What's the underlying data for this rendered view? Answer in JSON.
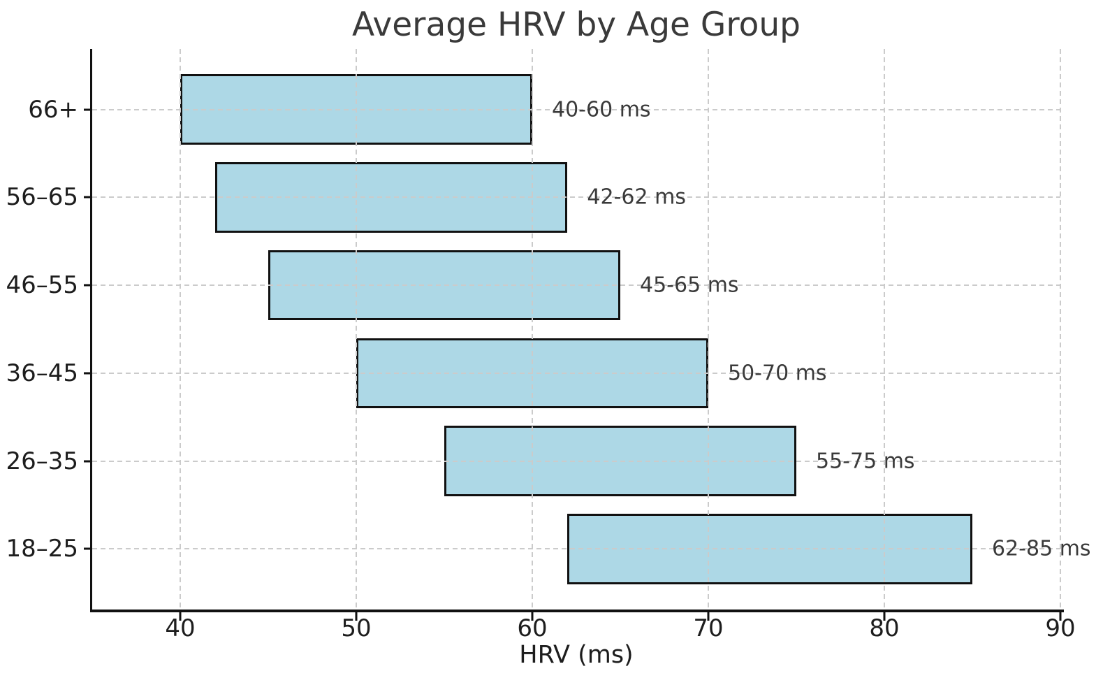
{
  "chart_data": {
    "type": "bar",
    "orientation": "horizontal",
    "title": "Average HRV by Age Group",
    "xlabel": "HRV (ms)",
    "ylabel": "",
    "xlim": [
      35,
      90
    ],
    "xticks": [
      40,
      50,
      60,
      70,
      80,
      90
    ],
    "grid": true,
    "grid_style": "dashed",
    "legend_position": "none",
    "bar_height_fraction": 0.8,
    "categories": [
      "66+",
      "56–65",
      "46–55",
      "36–45",
      "26–35",
      "18–25"
    ],
    "bars": [
      {
        "category": "66+",
        "start": 40,
        "end": 60,
        "annotation": "40-60 ms"
      },
      {
        "category": "56–65",
        "start": 42,
        "end": 62,
        "annotation": "42-62 ms"
      },
      {
        "category": "46–55",
        "start": 45,
        "end": 65,
        "annotation": "45-65 ms"
      },
      {
        "category": "36–45",
        "start": 50,
        "end": 70,
        "annotation": "50-70 ms"
      },
      {
        "category": "26–35",
        "start": 55,
        "end": 75,
        "annotation": "55-75 ms"
      },
      {
        "category": "18–25",
        "start": 62,
        "end": 85,
        "annotation": "62-85 ms"
      }
    ],
    "colors": {
      "background": "#ffffff",
      "bar_fill": "#ADD8E6",
      "bar_edge": "#111111",
      "grid": "#cbcbcb",
      "spine": "#111111",
      "title_text": "#3a3a3a",
      "tick_text": "#1d1d1d",
      "annotation_text": "#3a3a3a"
    }
  }
}
